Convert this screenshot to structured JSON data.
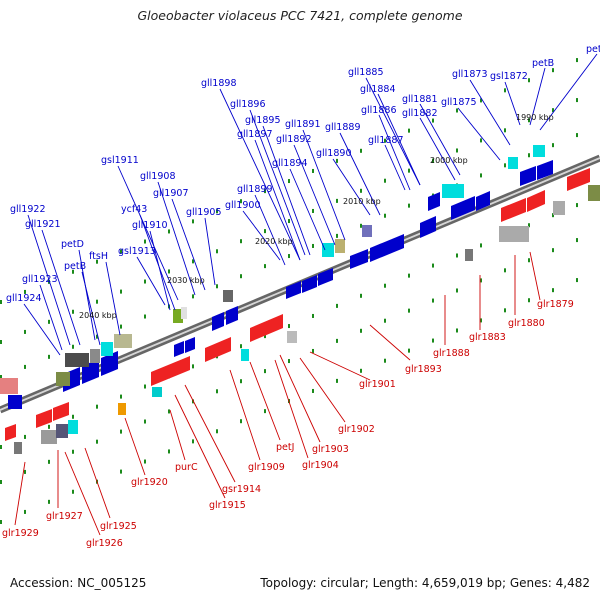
{
  "title": "Gloeobacter violaceus PCC 7421, complete genome",
  "footer": {
    "accession": "Accession: NC_005125",
    "topology": "Topology: circular; Length: 4,659,019 bp; Genes: 4,482"
  },
  "colors": {
    "forward": "#0000cc",
    "reverse": "#cc0000",
    "backbone": "#666666"
  },
  "kbp_labels": [
    "1990 kbp",
    "2000 kbp",
    "2010 kbp",
    "2020 kbp",
    "2030 kbp",
    "2040 kbp"
  ],
  "top_labels": [
    "petD",
    "petB",
    "gsl1872",
    "gll1873",
    "gll1875",
    "gll1881",
    "gll1882",
    "gll1885",
    "gll1884",
    "gll1886",
    "gll1887",
    "gll1889",
    "gll1890",
    "gll1891",
    "gll1892",
    "gll1894",
    "gll1895",
    "gll1896",
    "gll1897",
    "gll1898",
    "gll1899",
    "gll1900",
    "gll1905",
    "gll1907",
    "gll1908",
    "gsl1911",
    "ycf43",
    "gll1910",
    "gsl1913",
    "gll1921",
    "gll1922",
    "petD",
    "petB",
    "ftsH",
    "gll1923",
    "gll1924"
  ],
  "bottom_labels": [
    "glr1879",
    "glr1880",
    "glr1883",
    "glr1888",
    "glr1893",
    "glr1901",
    "glr1902",
    "glr1903",
    "glr1904",
    "petJ",
    "glr1909",
    "gsr1914",
    "glr1915",
    "purC",
    "glr1920",
    "glr1925",
    "glr1926",
    "glr1927",
    "glr1929"
  ]
}
